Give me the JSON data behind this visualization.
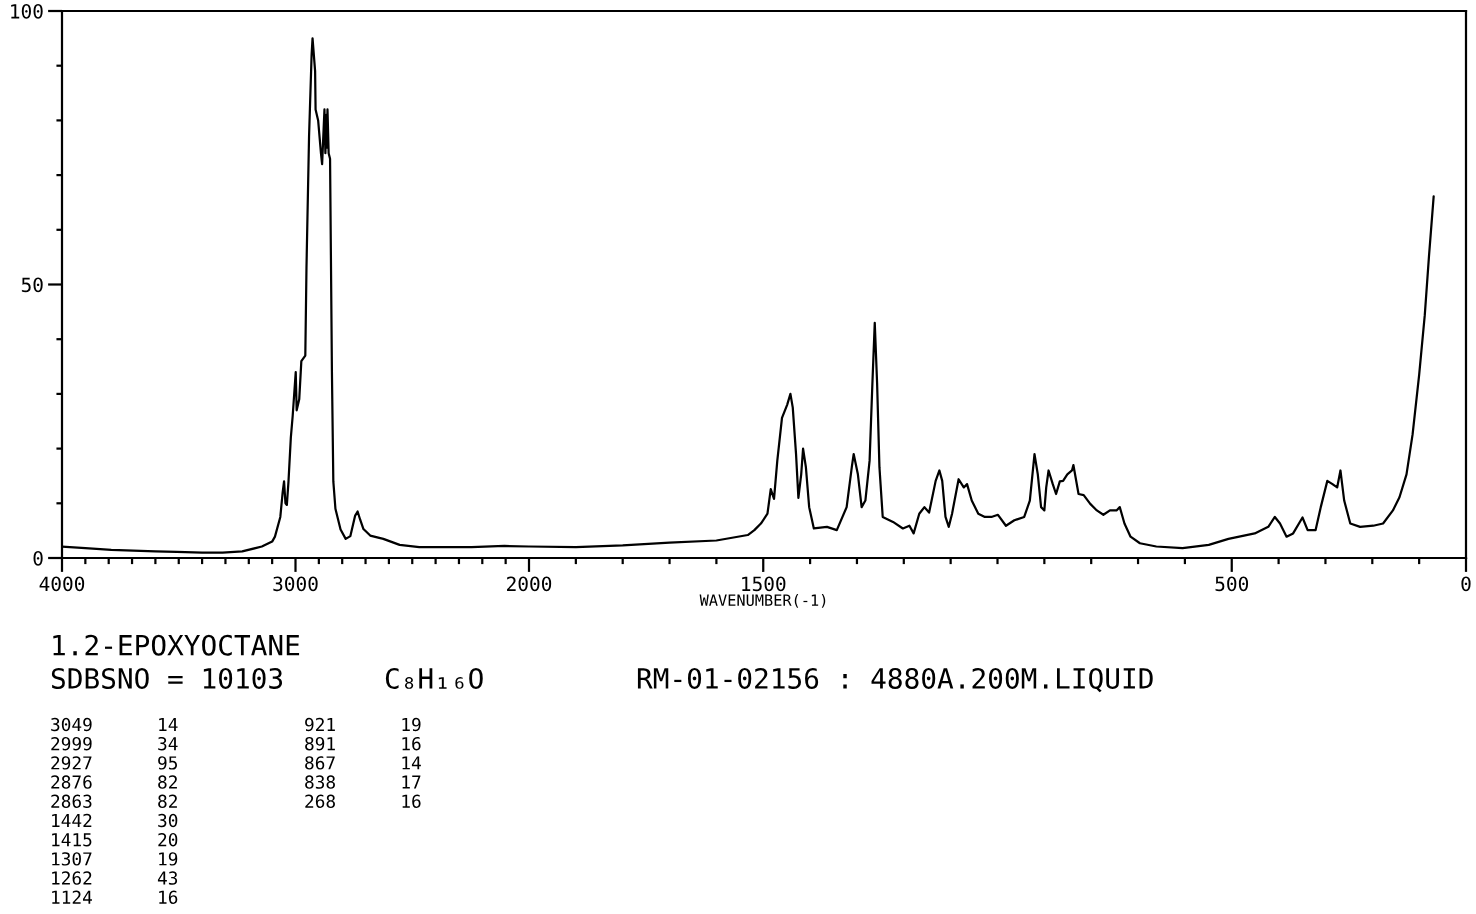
{
  "chart_data": [
    {
      "type": "line",
      "color": "#000000",
      "x": [
        4000,
        3900,
        3789,
        3600,
        3509,
        3400,
        3312,
        3228,
        3144,
        3100,
        3088,
        3065,
        3055,
        3049,
        3043,
        3037,
        3030,
        3020,
        3012,
        2999,
        2995,
        2984,
        2975,
        2958,
        2953,
        2942,
        2931,
        2927,
        2916,
        2914,
        2903,
        2891,
        2886,
        2880,
        2876,
        2872,
        2868,
        2866,
        2863,
        2858,
        2852,
        2844,
        2838,
        2829,
        2807,
        2785,
        2765,
        2745,
        2734,
        2723,
        2709,
        2680,
        2624,
        2554,
        2470,
        2246,
        2105,
        2000
      ],
      "values": [
        2.1,
        1.8,
        1.5,
        1.2,
        1.1,
        1.0,
        1.0,
        1.2,
        2.1,
        3.0,
        3.9,
        7.5,
        12.0,
        14.0,
        10.0,
        9.7,
        14.0,
        22.0,
        26.0,
        34.0,
        27.0,
        29.0,
        36.0,
        37.0,
        53.0,
        77.0,
        92.0,
        95.0,
        89.0,
        82.0,
        80.0,
        74.0,
        72.0,
        78.0,
        82.0,
        74.0,
        81.0,
        75.0,
        82.0,
        74.0,
        73.0,
        34.0,
        14.0,
        9.0,
        5.2,
        3.5,
        4.0,
        7.7,
        8.5,
        7.0,
        5.3,
        4.1,
        3.5,
        2.4,
        2.0,
        2.0,
        2.2,
        2.1
      ],
      "xlim": [
        4000,
        2000
      ],
      "xticks": [
        4000,
        {
          "value": 3900,
          "label": null
        },
        {
          "value": 3800,
          "label": null
        },
        {
          "value": 3700,
          "label": null
        },
        {
          "value": 3600,
          "label": null
        },
        {
          "value": 3500,
          "label": null
        },
        {
          "value": 3400,
          "label": null
        },
        {
          "value": 3300,
          "label": null
        },
        {
          "value": 3200,
          "label": null
        },
        {
          "value": 3100,
          "label": null
        },
        3000,
        {
          "value": 2900,
          "label": null
        },
        {
          "value": 2800,
          "label": null
        },
        {
          "value": 2700,
          "label": null
        },
        {
          "value": 2600,
          "label": null
        },
        {
          "value": 2500,
          "label": null
        },
        {
          "value": 2400,
          "label": null
        },
        {
          "value": 2300,
          "label": null
        },
        {
          "value": 2200,
          "label": null
        },
        {
          "value": 2100,
          "label": null
        },
        2000
      ],
      "ylim": [
        0,
        100
      ],
      "yticks": [
        0,
        {
          "value": 10,
          "label": null
        },
        {
          "value": 20,
          "label": null
        },
        {
          "value": 30,
          "label": null
        },
        {
          "value": 40,
          "label": null
        },
        50,
        {
          "value": 60,
          "label": null
        },
        {
          "value": 70,
          "label": null
        },
        {
          "value": 80,
          "label": null
        },
        {
          "value": 90,
          "label": null
        },
        100
      ],
      "annotations": [
        "1.2-EPOXYOCTANE",
        "SDBSNO = 10103",
        "C₈H₁₆O",
        "RM-01-02156 : 4880A.200M.LIQUID",
        "3049      14",
        "2999      34",
        "2927      95",
        "2876      82",
        "2863      82",
        "1442      30",
        "1415      20",
        "1307      19",
        "1262      43",
        "1124      16",
        "921      19",
        "891      16",
        "867      14",
        "838      17",
        "268      16"
      ]
    },
    {
      "type": "line",
      "color": "#000000",
      "xlabel": "WAVENUMBER(-1)",
      "tick_labels": "x",
      "x": [
        2000,
        1900,
        1800,
        1700,
        1600,
        1533,
        1519,
        1505,
        1491,
        1484,
        1477,
        1470,
        1460,
        1449,
        1442,
        1437,
        1430,
        1425,
        1419,
        1415,
        1409,
        1402,
        1392,
        1364,
        1343,
        1322,
        1311,
        1307,
        1298,
        1290,
        1282,
        1273,
        1267,
        1262,
        1257,
        1252,
        1245,
        1223,
        1202,
        1188,
        1179,
        1167,
        1156,
        1146,
        1132,
        1124,
        1118,
        1111,
        1104,
        1097,
        1083,
        1072,
        1065,
        1055,
        1041,
        1027,
        1013,
        999,
        982,
        964,
        943,
        931,
        921,
        914,
        907,
        900,
        896,
        891,
        882,
        875,
        867,
        860,
        851,
        841,
        838,
        827,
        816,
        802,
        788,
        774,
        760,
        746,
        739,
        729,
        716,
        696,
        661,
        605,
        549,
        507,
        451,
        422,
        408,
        397,
        383,
        369,
        349,
        338,
        321,
        310,
        296,
        285,
        275,
        268,
        260,
        247,
        226,
        198,
        177,
        156,
        142,
        127,
        114,
        100,
        88,
        79,
        69
      ],
      "values": [
        2.1,
        2.0,
        2.3,
        2.8,
        3.2,
        4.2,
        5.1,
        6.3,
        8.1,
        12.6,
        10.8,
        17.8,
        25.6,
        28.0,
        30.0,
        27.5,
        19.0,
        11.0,
        15.3,
        20.0,
        16.6,
        9.3,
        5.4,
        5.7,
        5.1,
        9.3,
        16.6,
        19.0,
        15.3,
        9.3,
        10.5,
        17.8,
        32.0,
        43.0,
        32.0,
        16.6,
        7.5,
        6.6,
        5.4,
        5.9,
        4.5,
        8.1,
        9.3,
        8.3,
        14.1,
        16.0,
        14.1,
        7.5,
        5.7,
        8.1,
        14.4,
        12.9,
        13.5,
        10.5,
        8.1,
        7.5,
        7.5,
        7.9,
        5.9,
        6.9,
        7.5,
        10.5,
        19.0,
        15.3,
        9.3,
        8.7,
        12.9,
        16.0,
        13.5,
        11.7,
        14.0,
        14.1,
        15.3,
        16.0,
        17.0,
        11.7,
        11.5,
        9.9,
        8.7,
        7.9,
        8.7,
        8.7,
        9.3,
        6.3,
        3.9,
        2.7,
        2.1,
        1.8,
        2.4,
        3.5,
        4.5,
        5.7,
        7.5,
        6.3,
        3.9,
        4.5,
        7.4,
        5.1,
        5.1,
        9.3,
        14.1,
        13.5,
        12.9,
        16.0,
        10.5,
        6.3,
        5.7,
        5.9,
        6.3,
        8.7,
        11.1,
        15.3,
        22.6,
        33.5,
        44.4,
        55.2,
        66.1
      ],
      "xlim": [
        2000,
        0
      ],
      "xticks": [
        {
          "value": 1900,
          "label": null
        },
        {
          "value": 1800,
          "label": null
        },
        {
          "value": 1700,
          "label": null
        },
        {
          "value": 1600,
          "label": null
        },
        1500,
        {
          "value": 1400,
          "label": null
        },
        {
          "value": 1300,
          "label": null
        },
        {
          "value": 1200,
          "label": null
        },
        {
          "value": 1100,
          "label": null
        },
        {
          "value": 1000,
          "label": null
        },
        {
          "value": 900,
          "label": null
        },
        {
          "value": 800,
          "label": null
        },
        {
          "value": 700,
          "label": null
        },
        {
          "value": 600,
          "label": null
        },
        500,
        {
          "value": 400,
          "label": null
        },
        {
          "value": 300,
          "label": null
        },
        {
          "value": 200,
          "label": null
        },
        {
          "value": 100,
          "label": null
        },
        0
      ],
      "ylim": [
        0,
        100
      ]
    }
  ]
}
